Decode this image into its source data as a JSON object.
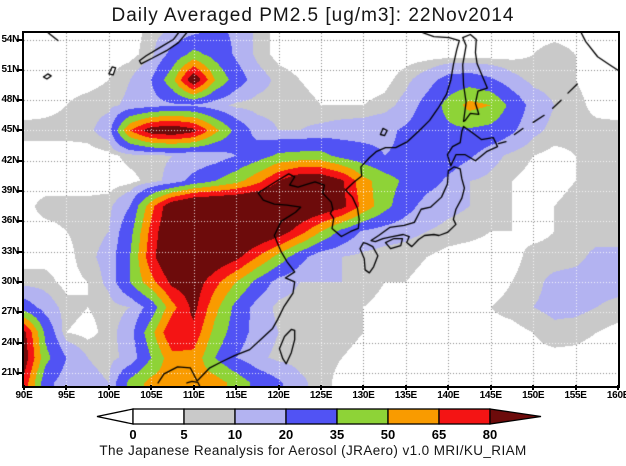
{
  "title": "Daily Averaged PM2.5 [ug/m3]: 22Nov2014",
  "caption": "The Japanese Reanalysis for Aerosol (JRAero) v1.0 MRI/KU_RIAM",
  "axes": {
    "lat_ticks": [
      "54N",
      "51N",
      "48N",
      "45N",
      "42N",
      "39N",
      "36N",
      "33N",
      "30N",
      "27N",
      "24N",
      "21N"
    ],
    "lon_ticks": [
      "90E",
      "95E",
      "100E",
      "105E",
      "110E",
      "115E",
      "120E",
      "125E",
      "130E",
      "135E",
      "140E",
      "145E",
      "150E",
      "155E",
      "160E"
    ]
  },
  "colorbar": {
    "labels": [
      "0",
      "5",
      "10",
      "20",
      "35",
      "50",
      "65",
      "80"
    ]
  },
  "chart_data": {
    "type": "heatmap",
    "variable": "PM2.5",
    "units": "ug/m3",
    "date": "22Nov2014",
    "title": "Daily Averaged PM2.5 [ug/m3]: 22Nov2014",
    "lon_range": [
      90,
      160
    ],
    "lat_range": [
      19.7,
      54.65
    ],
    "grid_lines": "dotted, every 5 deg lon, every 3 deg lat",
    "levels": [
      5,
      10,
      20,
      35,
      50,
      65,
      80
    ],
    "palette": [
      "#ffffff",
      "#c9c9c9",
      "#b3b3f1",
      "#5153f4",
      "#8ed337",
      "#f99b00",
      "#f41414",
      "#6d0b0b"
    ],
    "lons": [
      90,
      92.5,
      95,
      97.5,
      100,
      102.5,
      105,
      107.5,
      110,
      112.5,
      115,
      117.5,
      120,
      122.5,
      125,
      127.5,
      130,
      132.5,
      135,
      137.5,
      140,
      142.5,
      145,
      147.5,
      150,
      152.5,
      155,
      157.5,
      160
    ],
    "lats": [
      55,
      52.5,
      50,
      47.5,
      45,
      42.5,
      40,
      37.5,
      35,
      32.5,
      30,
      27.5,
      25,
      22.5,
      20
    ],
    "values": [
      [
        2,
        2,
        2,
        2,
        2,
        2,
        7,
        10,
        15,
        22,
        18,
        8,
        3,
        2,
        2,
        2,
        2,
        2,
        2,
        2,
        2,
        2,
        2,
        2,
        3,
        3,
        3,
        2,
        2
      ],
      [
        2,
        2,
        2,
        2,
        2,
        3,
        8,
        25,
        40,
        30,
        18,
        8,
        3,
        2,
        2,
        2,
        2,
        2,
        2,
        2,
        2,
        2,
        2,
        3,
        5,
        7,
        5,
        3,
        2
      ],
      [
        2,
        2,
        3,
        3,
        5,
        10,
        20,
        45,
        95,
        50,
        27,
        14,
        8,
        5,
        3,
        2,
        2,
        3,
        8,
        15,
        25,
        27,
        22,
        13,
        8,
        7,
        5,
        2,
        2
      ],
      [
        2,
        3,
        5,
        7,
        8,
        12,
        15,
        18,
        18,
        13,
        8,
        7,
        7,
        7,
        5,
        5,
        5,
        7,
        13,
        25,
        40,
        55,
        50,
        30,
        15,
        10,
        7,
        3,
        2
      ],
      [
        7,
        7,
        7,
        8,
        15,
        65,
        90,
        95,
        85,
        55,
        30,
        15,
        10,
        10,
        12,
        14,
        15,
        17,
        22,
        28,
        32,
        33,
        30,
        22,
        12,
        8,
        7,
        7,
        7
      ],
      [
        2,
        2,
        2,
        2,
        3,
        7,
        8,
        10,
        10,
        13,
        20,
        28,
        38,
        40,
        40,
        30,
        25,
        20,
        22,
        25,
        27,
        22,
        13,
        8,
        5,
        3,
        5,
        8,
        8
      ],
      [
        2,
        2,
        2,
        2,
        2,
        3,
        7,
        13,
        25,
        35,
        45,
        60,
        80,
        95,
        95,
        82,
        55,
        42,
        32,
        25,
        18,
        10,
        8,
        5,
        3,
        3,
        5,
        8,
        8
      ],
      [
        3,
        7,
        7,
        7,
        8,
        20,
        60,
        95,
        110,
        110,
        110,
        110,
        105,
        100,
        95,
        85,
        60,
        40,
        25,
        15,
        12,
        10,
        7,
        5,
        3,
        5,
        7,
        7,
        7
      ],
      [
        3,
        3,
        5,
        7,
        10,
        30,
        70,
        100,
        110,
        110,
        105,
        100,
        90,
        72,
        50,
        30,
        18,
        14,
        12,
        10,
        8,
        7,
        5,
        5,
        3,
        5,
        7,
        7,
        7
      ],
      [
        3,
        3,
        3,
        8,
        13,
        35,
        75,
        100,
        105,
        95,
        85,
        65,
        45,
        25,
        12,
        10,
        8,
        7,
        7,
        5,
        3,
        2,
        2,
        3,
        7,
        7,
        8,
        12,
        12
      ],
      [
        7,
        7,
        3,
        5,
        12,
        35,
        60,
        85,
        90,
        70,
        50,
        30,
        15,
        10,
        10,
        10,
        8,
        5,
        5,
        3,
        3,
        3,
        2,
        5,
        8,
        12,
        13,
        13,
        13
      ],
      [
        27,
        15,
        7,
        5,
        7,
        10,
        25,
        60,
        85,
        55,
        30,
        15,
        8,
        7,
        7,
        7,
        5,
        3,
        3,
        2,
        2,
        3,
        5,
        7,
        10,
        12,
        12,
        10,
        8
      ],
      [
        85,
        32,
        5,
        3,
        7,
        15,
        45,
        80,
        75,
        45,
        27,
        15,
        10,
        8,
        7,
        7,
        5,
        3,
        3,
        2,
        2,
        2,
        3,
        3,
        5,
        8,
        7,
        5,
        3
      ],
      [
        90,
        40,
        20,
        10,
        8,
        12,
        35,
        60,
        60,
        35,
        20,
        12,
        8,
        7,
        7,
        5,
        3,
        2,
        2,
        2,
        2,
        2,
        3,
        3,
        3,
        3,
        3,
        2,
        2
      ],
      [
        75,
        25,
        13,
        12,
        10,
        40,
        55,
        57,
        57,
        57,
        45,
        30,
        22,
        12,
        7,
        3,
        2,
        2,
        2,
        2,
        2,
        2,
        2,
        2,
        2,
        2,
        2,
        2,
        2
      ]
    ]
  },
  "map_layout": {
    "coastlines": [
      [
        [
          105.8,
          20
        ],
        [
          106.5,
          20.9
        ],
        [
          108.1,
          21.6
        ],
        [
          109.6,
          21.5
        ],
        [
          110.4,
          20.2
        ],
        [
          111.9,
          21.5
        ],
        [
          113.3,
          22.1
        ],
        [
          114.8,
          22.7
        ],
        [
          116.6,
          23.3
        ],
        [
          117.9,
          24.3
        ],
        [
          119.3,
          25.4
        ],
        [
          119.9,
          26.3
        ],
        [
          120.6,
          27.5
        ],
        [
          121.7,
          28.9
        ],
        [
          121.9,
          30.0
        ],
        [
          120.8,
          30.4
        ],
        [
          121.9,
          31.0
        ],
        [
          121.0,
          32.0
        ],
        [
          120.3,
          33.0
        ],
        [
          119.5,
          34.6
        ],
        [
          120.3,
          36.0
        ],
        [
          122.0,
          36.9
        ],
        [
          122.6,
          37.4
        ],
        [
          121.0,
          37.6
        ],
        [
          119.5,
          37.7
        ],
        [
          118.2,
          38.1
        ],
        [
          117.6,
          38.8
        ],
        [
          118.3,
          39.2
        ],
        [
          119.6,
          39.9
        ],
        [
          121.2,
          40.7
        ],
        [
          121.9,
          40.4
        ],
        [
          121.3,
          39.6
        ],
        [
          122.3,
          39.4
        ],
        [
          123.5,
          39.7
        ],
        [
          124.3,
          39.9
        ],
        [
          125.4,
          39.6
        ],
        [
          125.2,
          38.8
        ],
        [
          126.2,
          37.9
        ],
        [
          126.4,
          37.2
        ],
        [
          126.1,
          36.8
        ],
        [
          126.5,
          36.3
        ],
        [
          126.3,
          35.3
        ],
        [
          127.4,
          34.5
        ],
        [
          128.5,
          35.0
        ],
        [
          129.4,
          35.3
        ],
        [
          129.5,
          36.2
        ],
        [
          129.3,
          37.3
        ],
        [
          128.7,
          38.4
        ],
        [
          127.9,
          39.1
        ],
        [
          128.9,
          39.9
        ],
        [
          129.8,
          40.5
        ],
        [
          129.7,
          41.4
        ],
        [
          130.7,
          42.3
        ],
        [
          131.5,
          42.9
        ],
        [
          132.6,
          43.3
        ],
        [
          133.8,
          43.3
        ],
        [
          135.2,
          43.9
        ],
        [
          136.6,
          45.0
        ],
        [
          137.8,
          46.0
        ],
        [
          138.8,
          47.2
        ],
        [
          139.8,
          48.6
        ],
        [
          140.3,
          50.0
        ],
        [
          140.6,
          51.5
        ],
        [
          141.0,
          53.0
        ],
        [
          141.3,
          53.9
        ],
        [
          140.1,
          54.2
        ],
        [
          138.3,
          54.3
        ],
        [
          136.9,
          54.7
        ],
        [
          136.0,
          55.2
        ]
      ],
      [
        [
          103.8,
          51.6
        ],
        [
          105.2,
          52.2
        ],
        [
          106.8,
          52.9
        ],
        [
          108.2,
          53.7
        ],
        [
          109.2,
          54.7
        ],
        [
          109.8,
          55.1
        ],
        [
          108.6,
          55.1
        ],
        [
          107.6,
          54.0
        ],
        [
          106.0,
          53.2
        ],
        [
          104.4,
          52.4
        ],
        [
          103.6,
          51.9
        ],
        [
          103.8,
          51.6
        ]
      ],
      [
        [
          100.0,
          50.6
        ],
        [
          100.4,
          51.3
        ],
        [
          100.8,
          51.2
        ],
        [
          100.5,
          50.5
        ],
        [
          100.0,
          50.6
        ]
      ],
      [
        [
          92.3,
          50.3
        ],
        [
          92.8,
          50.6
        ],
        [
          93.2,
          50.4
        ],
        [
          92.7,
          50.1
        ],
        [
          92.3,
          50.3
        ]
      ],
      [
        [
          92.5,
          54.9
        ],
        [
          94.0,
          53.9
        ]
      ],
      [
        [
          132.0,
          44.6
        ],
        [
          132.3,
          45.2
        ],
        [
          132.8,
          45.0
        ],
        [
          132.5,
          44.5
        ],
        [
          132.0,
          44.6
        ]
      ],
      [
        [
          109.2,
          20.0
        ],
        [
          109.8,
          20.15
        ],
        [
          110.5,
          20.05
        ],
        [
          110.7,
          19.7
        ]
      ],
      [
        [
          121.9,
          25.2
        ],
        [
          121.5,
          25.3
        ],
        [
          120.7,
          24.6
        ],
        [
          120.1,
          23.4
        ],
        [
          120.5,
          22.4
        ],
        [
          120.9,
          21.9
        ],
        [
          121.5,
          23.0
        ],
        [
          121.9,
          24.3
        ],
        [
          121.9,
          25.2
        ]
      ],
      [
        [
          130.0,
          33.9
        ],
        [
          129.6,
          33.3
        ],
        [
          130.1,
          32.3
        ],
        [
          130.2,
          31.2
        ],
        [
          130.7,
          30.9
        ],
        [
          131.2,
          31.5
        ],
        [
          131.7,
          32.6
        ],
        [
          131.1,
          33.5
        ],
        [
          130.4,
          33.8
        ],
        [
          130.0,
          33.9
        ]
      ],
      [
        [
          132.6,
          33.9
        ],
        [
          133.6,
          34.3
        ],
        [
          134.6,
          34.3
        ],
        [
          134.4,
          33.6
        ],
        [
          133.2,
          33.3
        ],
        [
          132.6,
          33.9
        ]
      ],
      [
        [
          130.9,
          34.1
        ],
        [
          131.8,
          34.6
        ],
        [
          133.1,
          35.4
        ],
        [
          134.8,
          35.6
        ],
        [
          136.0,
          35.9
        ],
        [
          136.8,
          37.2
        ],
        [
          137.9,
          37.4
        ],
        [
          139.2,
          38.4
        ],
        [
          139.9,
          39.7
        ],
        [
          140.0,
          41.0
        ],
        [
          140.7,
          41.4
        ],
        [
          141.4,
          41.2
        ],
        [
          141.6,
          40.2
        ],
        [
          141.9,
          39.3
        ],
        [
          141.6,
          38.3
        ],
        [
          140.9,
          37.2
        ],
        [
          140.6,
          36.2
        ],
        [
          140.9,
          35.7
        ],
        [
          139.9,
          34.9
        ],
        [
          138.9,
          34.6
        ],
        [
          138.3,
          34.7
        ],
        [
          137.2,
          34.6
        ],
        [
          136.5,
          34.2
        ],
        [
          135.7,
          33.5
        ],
        [
          135.1,
          33.9
        ],
        [
          135.4,
          34.5
        ],
        [
          134.7,
          34.7
        ],
        [
          133.4,
          34.5
        ],
        [
          132.3,
          34.3
        ],
        [
          131.4,
          34.0
        ],
        [
          130.9,
          34.1
        ]
      ],
      [
        [
          140.3,
          41.5
        ],
        [
          139.9,
          42.6
        ],
        [
          140.5,
          43.4
        ],
        [
          141.4,
          43.8
        ],
        [
          141.6,
          44.9
        ],
        [
          141.8,
          45.4
        ],
        [
          142.8,
          44.8
        ],
        [
          143.9,
          44.1
        ],
        [
          145.3,
          44.3
        ],
        [
          145.8,
          43.4
        ],
        [
          144.5,
          42.9
        ],
        [
          143.2,
          42.0
        ],
        [
          142.0,
          42.6
        ],
        [
          140.9,
          42.6
        ],
        [
          140.3,
          41.5
        ]
      ],
      [
        [
          141.8,
          45.9
        ],
        [
          142.1,
          47.8
        ],
        [
          141.8,
          49.5
        ],
        [
          141.7,
          51.5
        ],
        [
          142.1,
          53.4
        ],
        [
          141.7,
          54.2
        ],
        [
          142.6,
          54.5
        ],
        [
          143.3,
          54.0
        ],
        [
          143.2,
          52.7
        ],
        [
          143.4,
          51.6
        ],
        [
          144.6,
          49.2
        ],
        [
          143.5,
          48.9
        ],
        [
          143.2,
          47.7
        ],
        [
          143.6,
          46.6
        ],
        [
          142.6,
          46.7
        ],
        [
          142.0,
          46.0
        ],
        [
          141.8,
          45.9
        ]
      ],
      [
        [
          155.4,
          55.1
        ],
        [
          156.2,
          53.8
        ],
        [
          157.6,
          52.3
        ],
        [
          159.0,
          51.5
        ],
        [
          160.1,
          50.9
        ]
      ],
      [
        [
          145.9,
          43.7
        ],
        [
          146.8,
          43.9
        ]
      ],
      [
        [
          147.8,
          44.6
        ],
        [
          148.8,
          45.2
        ]
      ],
      [
        [
          150.0,
          45.8
        ],
        [
          151.3,
          46.5
        ]
      ],
      [
        [
          152.3,
          47.2
        ],
        [
          153.3,
          48.0
        ]
      ],
      [
        [
          154.1,
          48.7
        ],
        [
          155.2,
          49.6
        ]
      ]
    ]
  }
}
